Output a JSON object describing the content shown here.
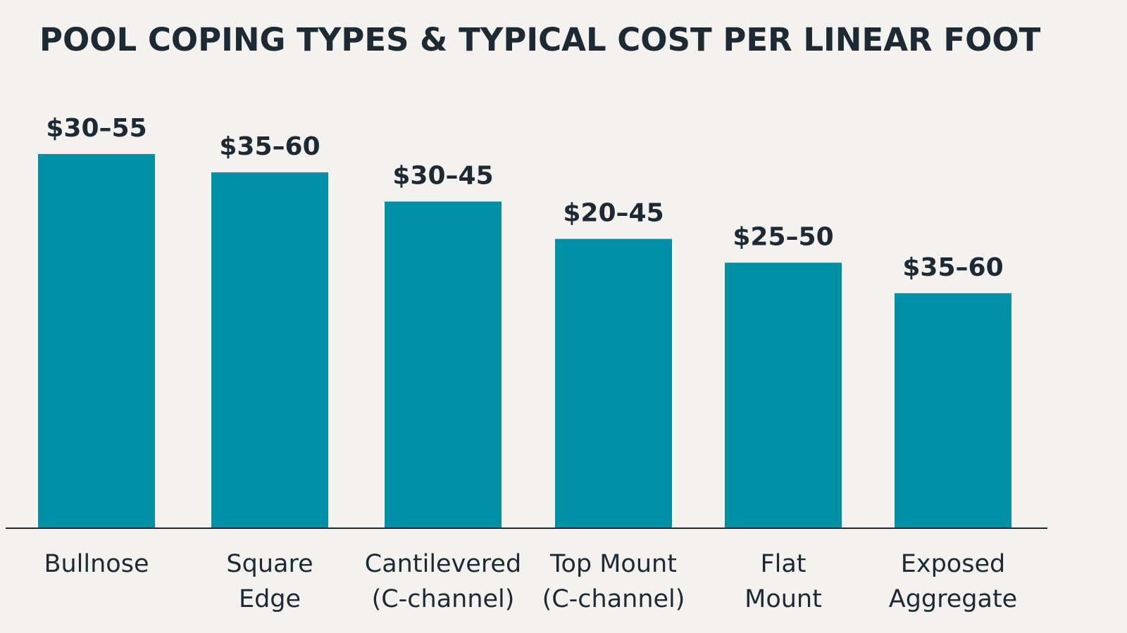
{
  "chart_data": {
    "type": "bar",
    "title": "POOL COPING TYPES & TYPICAL COST PER LINEAR FOOT",
    "xlabel": "",
    "ylabel": "",
    "grid": false,
    "legend": "none",
    "categories": [
      [
        "Bullnose"
      ],
      [
        "Square",
        "Edge"
      ],
      [
        "Cantilevered",
        "(C-channel)"
      ],
      [
        "Top Mount",
        "(C-channel)"
      ],
      [
        "Flat",
        "Mount"
      ],
      [
        "Exposed",
        "Aggregate"
      ]
    ],
    "value_labels": [
      "$30–55",
      "$35–60",
      "$30–45",
      "$20–45",
      "$25–50",
      "$35–60"
    ],
    "values": [
      55,
      52.3,
      48,
      42.5,
      39,
      34.5
    ],
    "ylim": [
      0,
      58
    ],
    "colors": {
      "bar": "#0090a6",
      "baseline": "#1e2a33",
      "text": "#1e2a33"
    }
  }
}
